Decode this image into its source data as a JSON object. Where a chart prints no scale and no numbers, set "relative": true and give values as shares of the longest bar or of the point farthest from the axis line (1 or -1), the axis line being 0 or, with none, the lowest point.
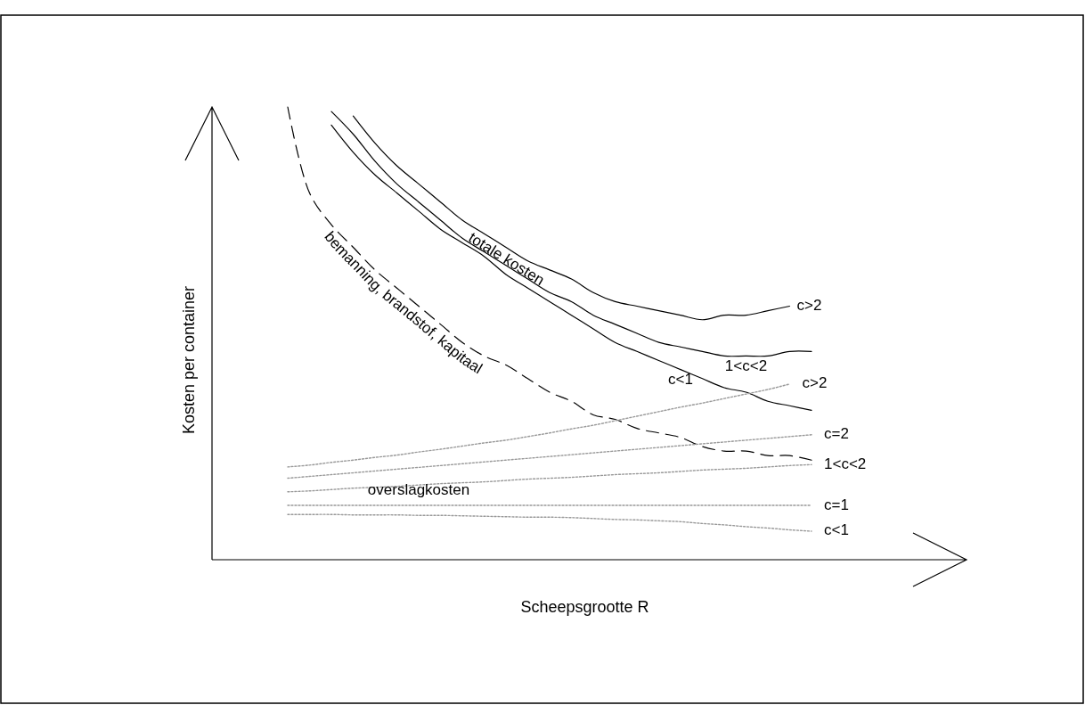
{
  "chart_data": {
    "type": "line",
    "relative": true,
    "tick_labels": false,
    "xlabel": "Scheepsgrootte R",
    "ylabel": "Kosten per container",
    "annotations": [
      "totale kosten",
      "overslagkosten"
    ],
    "categories": [
      null,
      null,
      null,
      null,
      null,
      null,
      null,
      null,
      null,
      null,
      null,
      null,
      null,
      null,
      null,
      null,
      null,
      null,
      null,
      null,
      null,
      null,
      null,
      null,
      null
    ],
    "series": [
      {
        "name": "bemanning, brandstof, kapitaal",
        "color": "#000000",
        "line_style": "dashed",
        "values": [
          1.0,
          0.81,
          0.74,
          0.69,
          0.64,
          0.6,
          0.56,
          0.52,
          0.48,
          0.45,
          0.43,
          0.4,
          0.37,
          0.35,
          0.32,
          0.31,
          0.29,
          0.28,
          0.27,
          0.25,
          0.24,
          0.24,
          0.23,
          0.23,
          0.22
        ]
      },
      {
        "name": "c<1",
        "color": "#000000",
        "line_style": "solid",
        "values": [
          null,
          null,
          0.96,
          0.9,
          0.85,
          0.81,
          0.77,
          0.73,
          0.7,
          0.67,
          0.63,
          0.6,
          0.57,
          0.54,
          0.51,
          0.48,
          0.46,
          0.44,
          0.42,
          0.4,
          0.38,
          0.37,
          0.35,
          0.34,
          0.33
        ]
      },
      {
        "name": "1<c<2",
        "color": "#000000",
        "line_style": "solid",
        "values": [
          null,
          null,
          0.99,
          0.94,
          0.88,
          0.83,
          0.79,
          0.75,
          0.71,
          0.68,
          0.65,
          0.62,
          0.59,
          0.57,
          0.54,
          0.52,
          0.5,
          0.48,
          0.47,
          0.46,
          0.45,
          0.45,
          0.45,
          0.46,
          0.46
        ]
      },
      {
        "name": "c>2",
        "color": "#000000",
        "line_style": "solid",
        "values": [
          null,
          null,
          null,
          0.98,
          0.92,
          0.87,
          0.83,
          0.79,
          0.75,
          0.72,
          0.69,
          0.66,
          0.64,
          0.62,
          0.59,
          0.57,
          0.56,
          0.55,
          0.54,
          0.53,
          0.54,
          0.54,
          0.55,
          0.56,
          null
        ]
      },
      {
        "name": "c>2",
        "color": "#999999",
        "line_style": "dotted",
        "values": [
          0.205,
          0.209,
          0.215,
          0.22,
          0.226,
          0.231,
          0.238,
          0.244,
          0.251,
          0.258,
          0.264,
          0.272,
          0.28,
          0.289,
          0.297,
          0.307,
          0.317,
          0.327,
          0.337,
          0.346,
          0.356,
          0.366,
          0.376,
          0.388,
          null
        ]
      },
      {
        "name": "c=2",
        "color": "#999999",
        "line_style": "dotted",
        "values": [
          0.18,
          0.184,
          0.188,
          0.192,
          0.196,
          0.2,
          0.204,
          0.208,
          0.212,
          0.216,
          0.22,
          0.224,
          0.228,
          0.232,
          0.236,
          0.24,
          0.244,
          0.248,
          0.252,
          0.256,
          0.26,
          0.264,
          0.268,
          0.272,
          0.276
        ]
      },
      {
        "name": "1<c<2",
        "color": "#999999",
        "line_style": "dotted",
        "values": [
          0.15,
          0.152,
          0.155,
          0.158,
          0.16,
          0.162,
          0.165,
          0.168,
          0.17,
          0.172,
          0.175,
          0.178,
          0.18,
          0.182,
          0.185,
          0.188,
          0.19,
          0.192,
          0.195,
          0.198,
          0.2,
          0.202,
          0.205,
          0.208,
          0.21
        ]
      },
      {
        "name": "c=1",
        "color": "#999999",
        "line_style": "dotted",
        "values": [
          0.12,
          0.12,
          0.12,
          0.12,
          0.12,
          0.12,
          0.12,
          0.12,
          0.12,
          0.12,
          0.12,
          0.12,
          0.12,
          0.12,
          0.12,
          0.12,
          0.12,
          0.12,
          0.12,
          0.12,
          0.12,
          0.12,
          0.12,
          0.12,
          0.12
        ]
      },
      {
        "name": "c<1",
        "color": "#999999",
        "line_style": "dotted",
        "values": [
          0.1,
          0.1,
          0.1,
          0.099,
          0.099,
          0.099,
          0.098,
          0.098,
          0.097,
          0.096,
          0.095,
          0.094,
          0.094,
          0.093,
          0.091,
          0.089,
          0.088,
          0.086,
          0.084,
          0.08,
          0.077,
          0.073,
          0.07,
          0.066,
          0.063
        ]
      }
    ]
  }
}
